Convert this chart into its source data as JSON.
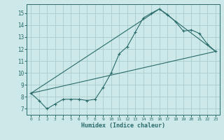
{
  "xlabel": "Humidex (Indice chaleur)",
  "bg_color": "#cce8e8",
  "grid_color": "#aacccc",
  "line_color": "#2a6b6b",
  "xlim": [
    -0.5,
    23.5
  ],
  "ylim": [
    6.5,
    15.75
  ],
  "xticks": [
    0,
    1,
    2,
    3,
    4,
    5,
    6,
    7,
    8,
    9,
    10,
    11,
    12,
    13,
    14,
    15,
    16,
    17,
    18,
    19,
    20,
    21,
    22,
    23
  ],
  "yticks": [
    7,
    8,
    9,
    10,
    11,
    12,
    13,
    14,
    15
  ],
  "curve1_x": [
    0,
    1,
    2,
    3,
    4,
    5,
    6,
    7,
    8,
    9,
    10,
    11,
    12,
    13,
    14,
    15,
    16,
    17,
    18,
    19,
    20,
    21,
    22,
    23
  ],
  "curve1_y": [
    8.3,
    7.7,
    7.0,
    7.4,
    7.8,
    7.8,
    7.8,
    7.7,
    7.8,
    8.8,
    10.0,
    11.6,
    12.2,
    13.4,
    14.6,
    15.0,
    15.35,
    14.9,
    14.3,
    13.5,
    13.6,
    13.3,
    12.4,
    11.8
  ],
  "line1_x": [
    0,
    23
  ],
  "line1_y": [
    8.3,
    11.8
  ],
  "line2_x": [
    0,
    16,
    23
  ],
  "line2_y": [
    8.3,
    15.35,
    11.8
  ]
}
